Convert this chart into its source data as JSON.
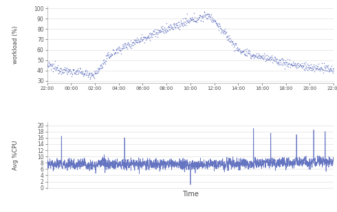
{
  "top_chart": {
    "ylabel": "workload (%)",
    "yticks": [
      30,
      40,
      50,
      60,
      70,
      80,
      90,
      100
    ],
    "ylim": [
      28,
      102
    ],
    "xticks_labels": [
      "22:00",
      "00:00",
      "02:00",
      "04:00",
      "06:00",
      "08:00",
      "10:00",
      "12:00",
      "14:00",
      "16:00",
      "18:00",
      "20:00",
      "22:00"
    ],
    "color": "#5566bb",
    "dot_alpha": 0.7
  },
  "bottom_chart": {
    "ylabel": "Avg %CPU",
    "xlabel": "Time",
    "yticks": [
      0,
      2,
      4,
      6,
      8,
      10,
      12,
      14,
      16,
      18,
      20
    ],
    "ylim": [
      -0.3,
      21
    ],
    "color": "#5566bb"
  },
  "background_color": "#ffffff",
  "grid_color": "#d8d8d8",
  "tick_color": "#555555",
  "font_color": "#444444",
  "fig_width": 4.9,
  "fig_height": 3.09,
  "dpi": 100
}
